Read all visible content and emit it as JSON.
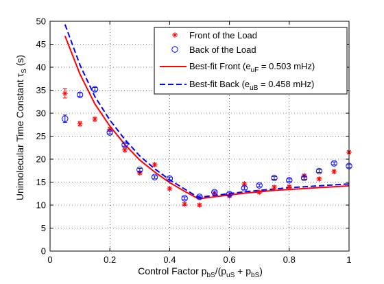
{
  "chart_data": {
    "type": "line",
    "xlabel": "Control Factor p_bS/(p_uS + p_bS)",
    "ylabel": "Unimolecular Time Constant  τ_S (s)",
    "xlim": [
      0,
      1
    ],
    "ylim": [
      0,
      50
    ],
    "xticks": [
      0,
      0.2,
      0.4,
      0.6,
      0.8,
      1
    ],
    "xtick_labels": [
      "0",
      "0.2",
      "0.4",
      "0.6",
      "0.8",
      "1"
    ],
    "yticks": [
      0,
      5,
      10,
      15,
      20,
      25,
      30,
      35,
      40,
      45,
      50
    ],
    "ytick_labels": [
      "0",
      "5",
      "10",
      "15",
      "20",
      "25",
      "30",
      "35",
      "40",
      "45",
      "50"
    ],
    "grid": true,
    "legend_position": "top-right",
    "series": [
      {
        "name": "Front of the Load",
        "kind": "scatter",
        "marker": "star",
        "color": "#ff0000",
        "x": [
          0.05,
          0.1,
          0.15,
          0.2,
          0.25,
          0.3,
          0.35,
          0.4,
          0.45,
          0.5,
          0.55,
          0.6,
          0.65,
          0.7,
          0.75,
          0.8,
          0.85,
          0.9,
          0.95,
          1.0
        ],
        "y": [
          34.3,
          27.7,
          28.7,
          26.5,
          22.0,
          17.0,
          18.8,
          13.6,
          10.2,
          10.0,
          12.5,
          12.0,
          14.6,
          12.8,
          13.9,
          14.0,
          16.4,
          15.7,
          17.3,
          21.5
        ],
        "err": [
          1.0,
          0.5,
          0.4,
          0.4,
          0.4,
          0.3,
          0.3,
          0.3,
          0.3,
          0.3,
          0.3,
          0.3,
          0.3,
          0.3,
          0.3,
          0.3,
          0.3,
          0.3,
          0.3,
          0.3
        ]
      },
      {
        "name": "Back of the Load",
        "kind": "scatter",
        "marker": "circle",
        "color": "#0000ff",
        "x": [
          0.05,
          0.1,
          0.15,
          0.2,
          0.25,
          0.3,
          0.35,
          0.4,
          0.45,
          0.5,
          0.55,
          0.6,
          0.65,
          0.7,
          0.75,
          0.8,
          0.85,
          0.9,
          0.95,
          1.0
        ],
        "y": [
          28.8,
          34.0,
          35.2,
          25.8,
          23.1,
          17.7,
          16.1,
          15.8,
          11.5,
          11.8,
          12.8,
          12.4,
          13.7,
          14.3,
          15.9,
          15.4,
          15.9,
          17.4,
          19.1,
          18.5
        ],
        "err": [
          0.8,
          0.4,
          0.4,
          0.3,
          0.3,
          0.3,
          0.3,
          0.3,
          0.3,
          0.3,
          0.3,
          0.3,
          0.3,
          0.3,
          0.3,
          0.3,
          0.3,
          0.3,
          0.3,
          0.3
        ]
      },
      {
        "name": "Best-fit Front (e_uF = 0.503 mHz)",
        "kind": "line",
        "style": "solid",
        "color": "#ff0000",
        "x": [
          0.05,
          0.1,
          0.15,
          0.2,
          0.25,
          0.3,
          0.35,
          0.4,
          0.45,
          0.49,
          0.5,
          0.55,
          0.6,
          0.65,
          0.7,
          0.75,
          0.8,
          0.85,
          0.9,
          0.95,
          1.0
        ],
        "y": [
          46.8,
          38.5,
          32.0,
          27.2,
          23.2,
          19.8,
          17.2,
          14.9,
          13.0,
          11.6,
          11.4,
          11.8,
          12.2,
          12.6,
          12.9,
          13.2,
          13.4,
          13.6,
          13.8,
          14.0,
          14.2
        ]
      },
      {
        "name": "Best-fit Back (e_uB = 0.458 mHz)",
        "kind": "line",
        "style": "dashed",
        "color": "#0000ff",
        "x": [
          0.05,
          0.1,
          0.15,
          0.2,
          0.25,
          0.3,
          0.35,
          0.4,
          0.45,
          0.49,
          0.5,
          0.55,
          0.6,
          0.65,
          0.7,
          0.75,
          0.8,
          0.85,
          0.9,
          0.95,
          1.0
        ],
        "y": [
          49.3,
          40.5,
          33.6,
          28.5,
          24.3,
          20.7,
          17.9,
          15.5,
          13.5,
          11.9,
          11.7,
          12.1,
          12.5,
          12.9,
          13.2,
          13.5,
          13.8,
          14.0,
          14.2,
          14.4,
          14.6
        ]
      }
    ]
  }
}
